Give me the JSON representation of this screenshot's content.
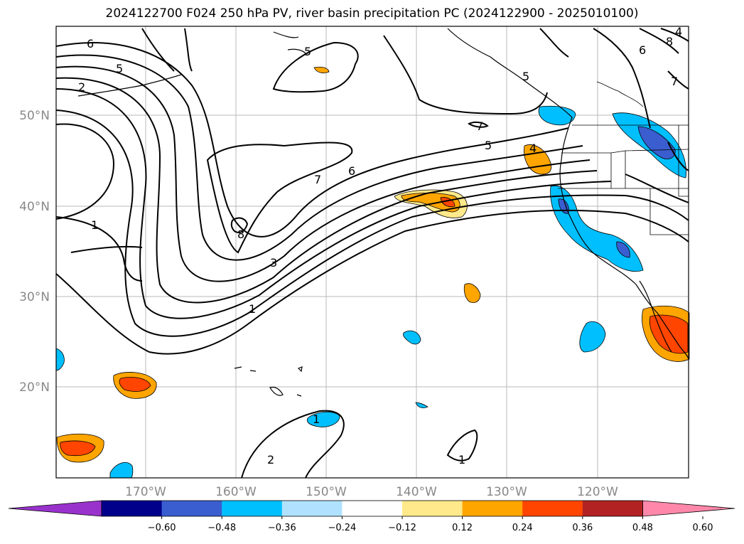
{
  "title": "2024122700 F024 250 hPa PV, river basin precipitation PC (2024122900 - 2025010100)",
  "map": {
    "lat_labels": [
      "50°N",
      "40°N",
      "30°N",
      "20°N"
    ],
    "lon_labels": [
      "170°W",
      "160°W",
      "150°W",
      "140°W",
      "130°W",
      "120°W"
    ],
    "gridlines": true,
    "contour_labels": [
      "6",
      "5",
      "2",
      "1",
      "8",
      "3",
      "1",
      "7",
      "6",
      "7",
      "5",
      "4",
      "5",
      "5",
      "6",
      "8",
      "7",
      "4",
      "1",
      "2",
      "1"
    ]
  },
  "colorbar": {
    "ticks": [
      "−0.60",
      "−0.48",
      "−0.36",
      "−0.24",
      "−0.12",
      "0.12",
      "0.24",
      "0.36",
      "0.48",
      "0.60"
    ],
    "colors": [
      "#9932cc",
      "#00008b",
      "#3a5ecf",
      "#00bfff",
      "#b0e2ff",
      "#ffffff",
      "#ffe98a",
      "#ffa500",
      "#ff4500",
      "#b22222",
      "#ff88aa"
    ],
    "extend": "both"
  }
}
